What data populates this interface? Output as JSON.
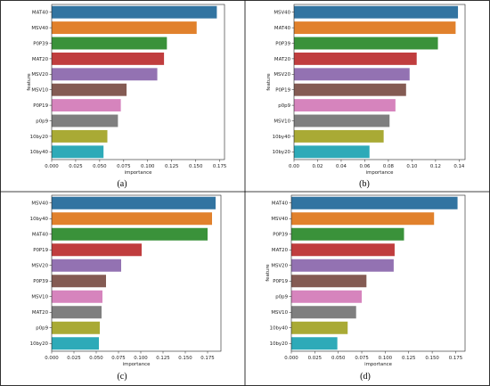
{
  "colors": [
    "#3274a1",
    "#e1812c",
    "#3a923a",
    "#c03d3e",
    "#9372b2",
    "#845b53",
    "#d684bd",
    "#7f7f7f",
    "#a9aa35",
    "#2eaab8"
  ],
  "chart_data": [
    {
      "type": "bar",
      "orientation": "horizontal",
      "panel_label": "(a)",
      "xlabel": "importance",
      "ylabel": "feature",
      "categories": [
        "MAT40",
        "MSV40",
        "P0P39",
        "MAT20",
        "MSV20",
        "MSV10",
        "P0P19",
        "p0p9",
        "10by20",
        "10by40"
      ],
      "values": [
        0.172,
        0.151,
        0.12,
        0.117,
        0.11,
        0.078,
        0.072,
        0.069,
        0.058,
        0.054
      ],
      "xlim": [
        0,
        0.18
      ],
      "xticks": [
        "0.000",
        "0.025",
        "0.050",
        "0.075",
        "0.100",
        "0.125",
        "0.150",
        "0.175"
      ],
      "xtick_values": [
        0,
        0.025,
        0.05,
        0.075,
        0.1,
        0.125,
        0.15,
        0.175
      ]
    },
    {
      "type": "bar",
      "orientation": "horizontal",
      "panel_label": "(b)",
      "xlabel": "importance",
      "ylabel": "feature",
      "categories": [
        "MSV40",
        "MAT40",
        "P0P39",
        "MAT20",
        "MSV20",
        "P0P19",
        "p0p9",
        "MSV10",
        "10by40",
        "10by20"
      ],
      "values": [
        0.139,
        0.137,
        0.122,
        0.104,
        0.098,
        0.095,
        0.086,
        0.081,
        0.076,
        0.064
      ],
      "xlim": [
        0,
        0.145
      ],
      "xticks": [
        "0.00",
        "0.02",
        "0.04",
        "0.06",
        "0.08",
        "0.10",
        "0.12",
        "0.14"
      ],
      "xtick_values": [
        0,
        0.02,
        0.04,
        0.06,
        0.08,
        0.1,
        0.12,
        0.14
      ]
    },
    {
      "type": "bar",
      "orientation": "horizontal",
      "panel_label": "(c)",
      "xlabel": "importance",
      "ylabel": "",
      "categories": [
        "MSV40",
        "10by40",
        "MAT40",
        "P0P19",
        "MSV20",
        "P0P39",
        "MSV10",
        "MAT20",
        "p0p9",
        "10by20"
      ],
      "values": [
        0.184,
        0.18,
        0.175,
        0.101,
        0.078,
        0.061,
        0.057,
        0.056,
        0.054,
        0.053
      ],
      "xlim": [
        0,
        0.19
      ],
      "xticks": [
        "0.000",
        "0.025",
        "0.050",
        "0.075",
        "0.100",
        "0.125",
        "0.150",
        "0.175"
      ],
      "xtick_values": [
        0,
        0.025,
        0.05,
        0.075,
        0.1,
        0.125,
        0.15,
        0.175
      ]
    },
    {
      "type": "bar",
      "orientation": "horizontal",
      "panel_label": "(d)",
      "xlabel": "importance",
      "ylabel": "feature",
      "categories": [
        "MAT40",
        "MSV40",
        "P0P39",
        "MAT20",
        "MSV20",
        "P0P19",
        "p0p9",
        "MSV10",
        "10by40",
        "10by20"
      ],
      "values": [
        0.177,
        0.152,
        0.12,
        0.11,
        0.109,
        0.08,
        0.075,
        0.069,
        0.06,
        0.049
      ],
      "xlim": [
        0,
        0.185
      ],
      "xticks": [
        "0.000",
        "0.025",
        "0.050",
        "0.075",
        "0.100",
        "0.125",
        "0.150",
        "0.175"
      ],
      "xtick_values": [
        0,
        0.025,
        0.05,
        0.075,
        0.1,
        0.125,
        0.15,
        0.175
      ]
    }
  ]
}
